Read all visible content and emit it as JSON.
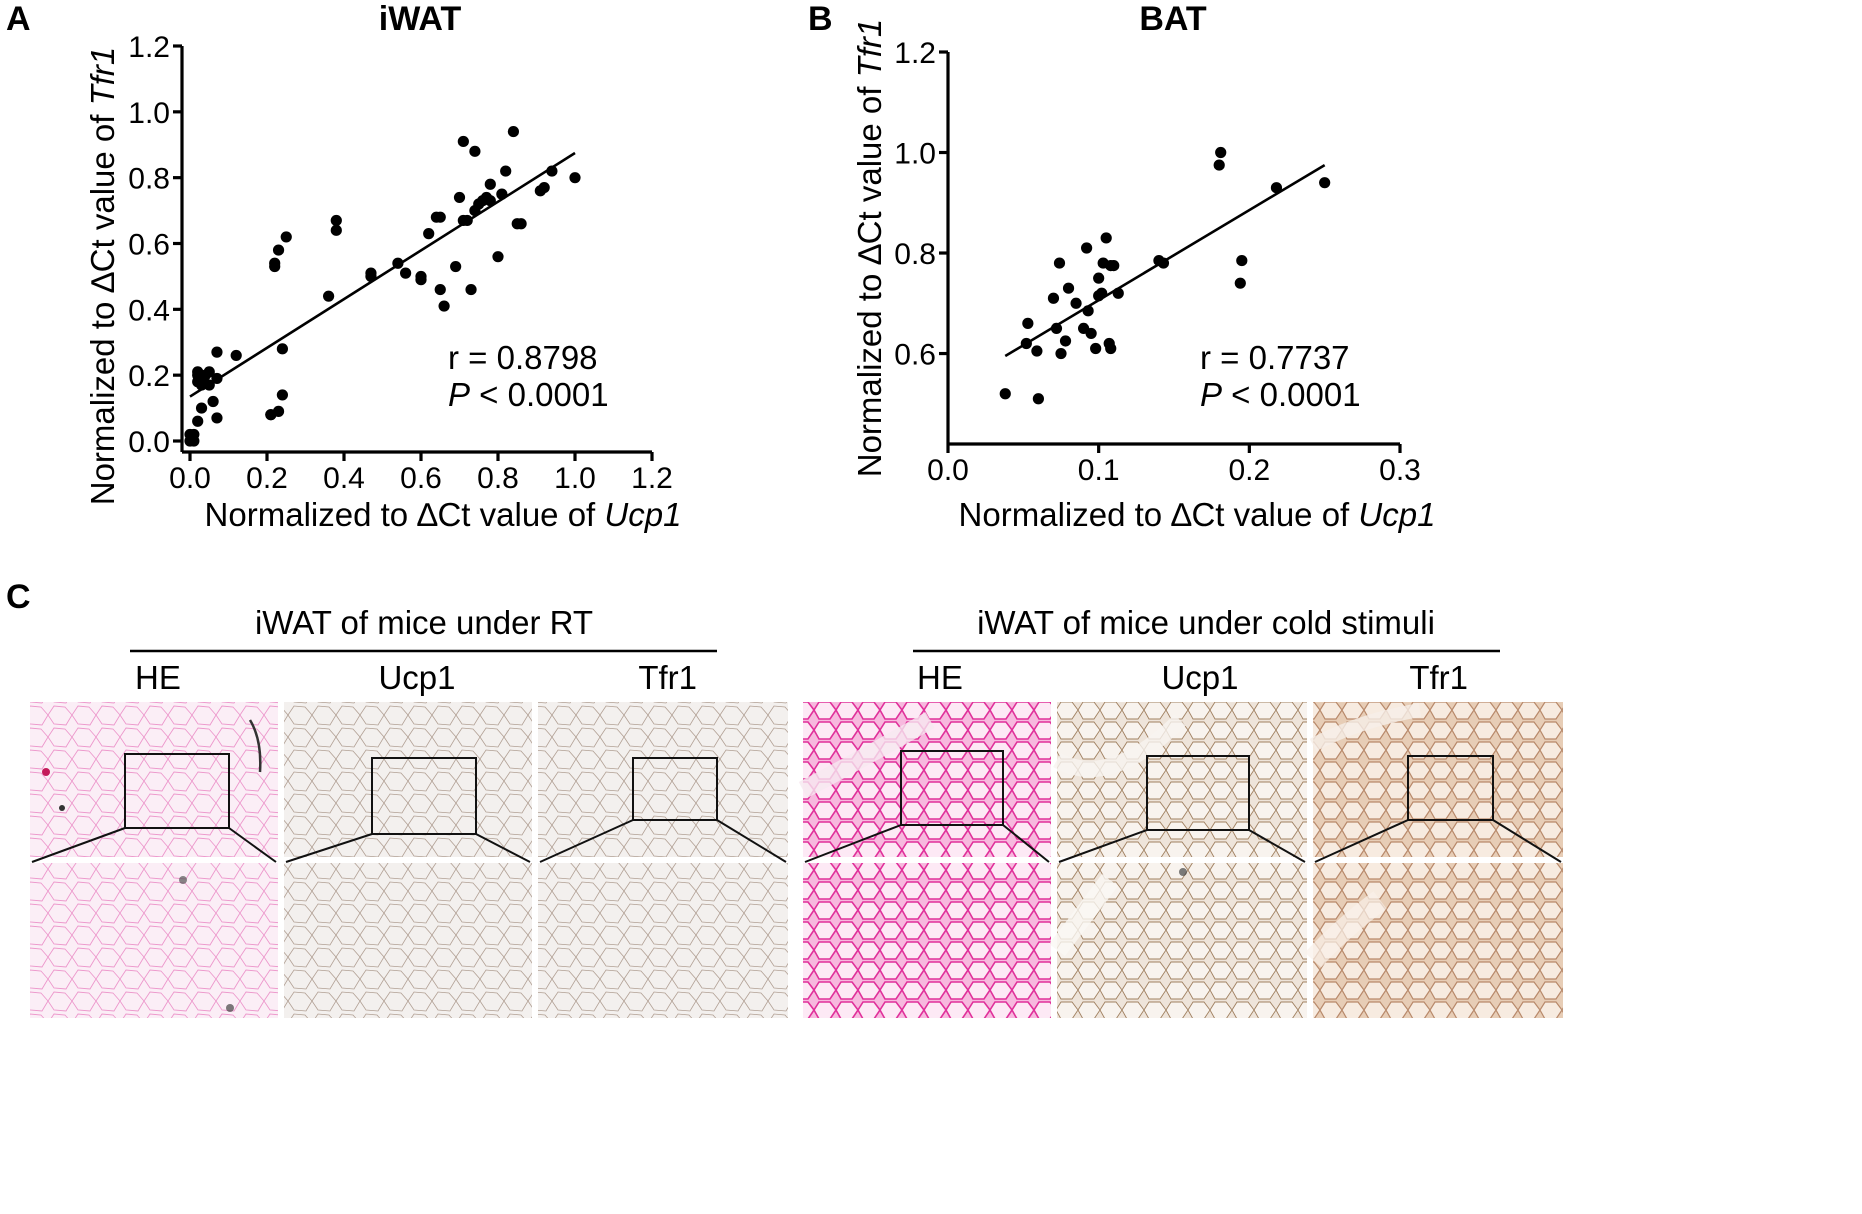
{
  "panels": {
    "A": "A",
    "B": "B",
    "C": "C"
  },
  "chart_data": [
    {
      "type": "scatter",
      "panel": "A",
      "title": "iWAT",
      "xlabel": "Normalized to ∆Ct value of ",
      "xlabel_italic": "Ucp1",
      "ylabel": "Normalized to ∆Ct value of ",
      "ylabel_italic": "Tfr1",
      "xlim": [
        0.0,
        1.2
      ],
      "ylim": [
        0.0,
        1.2
      ],
      "x_ticks": [
        0.0,
        0.2,
        0.4,
        0.6,
        0.8,
        1.0,
        1.2
      ],
      "x_tick_labels": [
        "0.0",
        "0.2",
        "0.4",
        "0.6",
        "0.8",
        "1.0",
        "1.2"
      ],
      "y_ticks": [
        0.0,
        0.2,
        0.4,
        0.6,
        0.8,
        1.0,
        1.2
      ],
      "y_tick_labels": [
        "0.0",
        "0.2",
        "0.4",
        "0.6",
        "0.8",
        "1.0",
        "1.2"
      ],
      "stat_r": "r =  0.8798",
      "stat_p_italic": "P",
      "stat_p_rest": " < 0.0001",
      "fit_line": {
        "x": [
          0.0,
          1.0
        ],
        "y": [
          0.135,
          0.875
        ]
      },
      "points": {
        "x": [
          0.0,
          0.0,
          0.01,
          0.01,
          0.02,
          0.02,
          0.02,
          0.03,
          0.03,
          0.04,
          0.05,
          0.05,
          0.06,
          0.07,
          0.07,
          0.07,
          0.12,
          0.02,
          0.03,
          0.21,
          0.22,
          0.22,
          0.23,
          0.24,
          0.25,
          0.21,
          0.23,
          0.24,
          0.36,
          0.38,
          0.38,
          0.47,
          0.47,
          0.54,
          0.56,
          0.6,
          0.6,
          0.62,
          0.64,
          0.65,
          0.65,
          0.66,
          0.69,
          0.7,
          0.71,
          0.71,
          0.72,
          0.73,
          0.74,
          0.74,
          0.75,
          0.76,
          0.77,
          0.78,
          0.78,
          0.8,
          0.81,
          0.82,
          0.84,
          0.85,
          0.86,
          0.91,
          0.92,
          0.94,
          1.0
        ],
        "y": [
          0.0,
          0.02,
          0.0,
          0.02,
          0.21,
          0.18,
          0.06,
          0.1,
          0.19,
          0.2,
          0.17,
          0.21,
          0.12,
          0.07,
          0.19,
          0.27,
          0.26,
          0.2,
          0.17,
          0.08,
          0.54,
          0.53,
          0.58,
          0.28,
          0.62,
          0.08,
          0.09,
          0.14,
          0.44,
          0.67,
          0.64,
          0.51,
          0.5,
          0.54,
          0.51,
          0.49,
          0.5,
          0.63,
          0.68,
          0.68,
          0.46,
          0.41,
          0.53,
          0.74,
          0.91,
          0.67,
          0.67,
          0.46,
          0.88,
          0.7,
          0.72,
          0.73,
          0.74,
          0.78,
          0.73,
          0.56,
          0.75,
          0.82,
          0.94,
          0.66,
          0.66,
          0.76,
          0.77,
          0.82,
          0.8
        ]
      }
    },
    {
      "type": "scatter",
      "panel": "B",
      "title": "BAT",
      "xlabel": "Normalized to ∆Ct value of ",
      "xlabel_italic": "Ucp1",
      "ylabel": "Normalized to ∆Ct value of ",
      "ylabel_italic": "Tfr1",
      "xlim": [
        0.0,
        0.3
      ],
      "ylim": [
        0.42,
        1.2
      ],
      "x_ticks": [
        0.0,
        0.1,
        0.2,
        0.3
      ],
      "x_tick_labels": [
        "0.0",
        "0.1",
        "0.2",
        "0.3"
      ],
      "y_ticks": [
        0.6,
        0.8,
        1.0,
        1.2
      ],
      "y_tick_labels": [
        "0.6",
        "0.8",
        "1.0",
        "1.2"
      ],
      "stat_r": "r =  0.7737",
      "stat_p_italic": "P",
      "stat_p_rest": " < 0.0001",
      "fit_line": {
        "x": [
          0.038,
          0.25
        ],
        "y": [
          0.595,
          0.975
        ]
      },
      "points": {
        "x": [
          0.038,
          0.052,
          0.053,
          0.059,
          0.06,
          0.07,
          0.072,
          0.074,
          0.075,
          0.078,
          0.08,
          0.085,
          0.09,
          0.092,
          0.093,
          0.095,
          0.098,
          0.1,
          0.1,
          0.102,
          0.103,
          0.105,
          0.107,
          0.108,
          0.108,
          0.11,
          0.113,
          0.14,
          0.143,
          0.18,
          0.181,
          0.194,
          0.195,
          0.218,
          0.25
        ],
        "y": [
          0.52,
          0.62,
          0.66,
          0.605,
          0.51,
          0.71,
          0.65,
          0.78,
          0.6,
          0.625,
          0.73,
          0.7,
          0.65,
          0.81,
          0.685,
          0.64,
          0.61,
          0.75,
          0.715,
          0.72,
          0.78,
          0.83,
          0.62,
          0.61,
          0.775,
          0.775,
          0.72,
          0.785,
          0.78,
          0.975,
          1.0,
          0.74,
          0.785,
          0.93,
          0.94
        ]
      }
    }
  ],
  "histology": {
    "rt": {
      "title": "iWAT of  mice under RT",
      "columns": [
        "HE",
        "Ucp1",
        "Tfr1"
      ]
    },
    "cold": {
      "title": "iWAT of mice under cold stimuli",
      "columns": [
        "HE",
        "Ucp1",
        "Tfr1"
      ]
    },
    "colors": {
      "he_light": "#f3dbe8",
      "he_cold": "#f4a9d8",
      "he_cold_dots": "#e8329f",
      "ucp1_rt": "#efebe8",
      "ucp1_cold": "#ece2d8",
      "tfr1_rt": "#ede9e8",
      "tfr1_cold": "#ecd6c4",
      "brown_dots": "#8a6a50",
      "blue_dots": "#6a74a8"
    }
  }
}
